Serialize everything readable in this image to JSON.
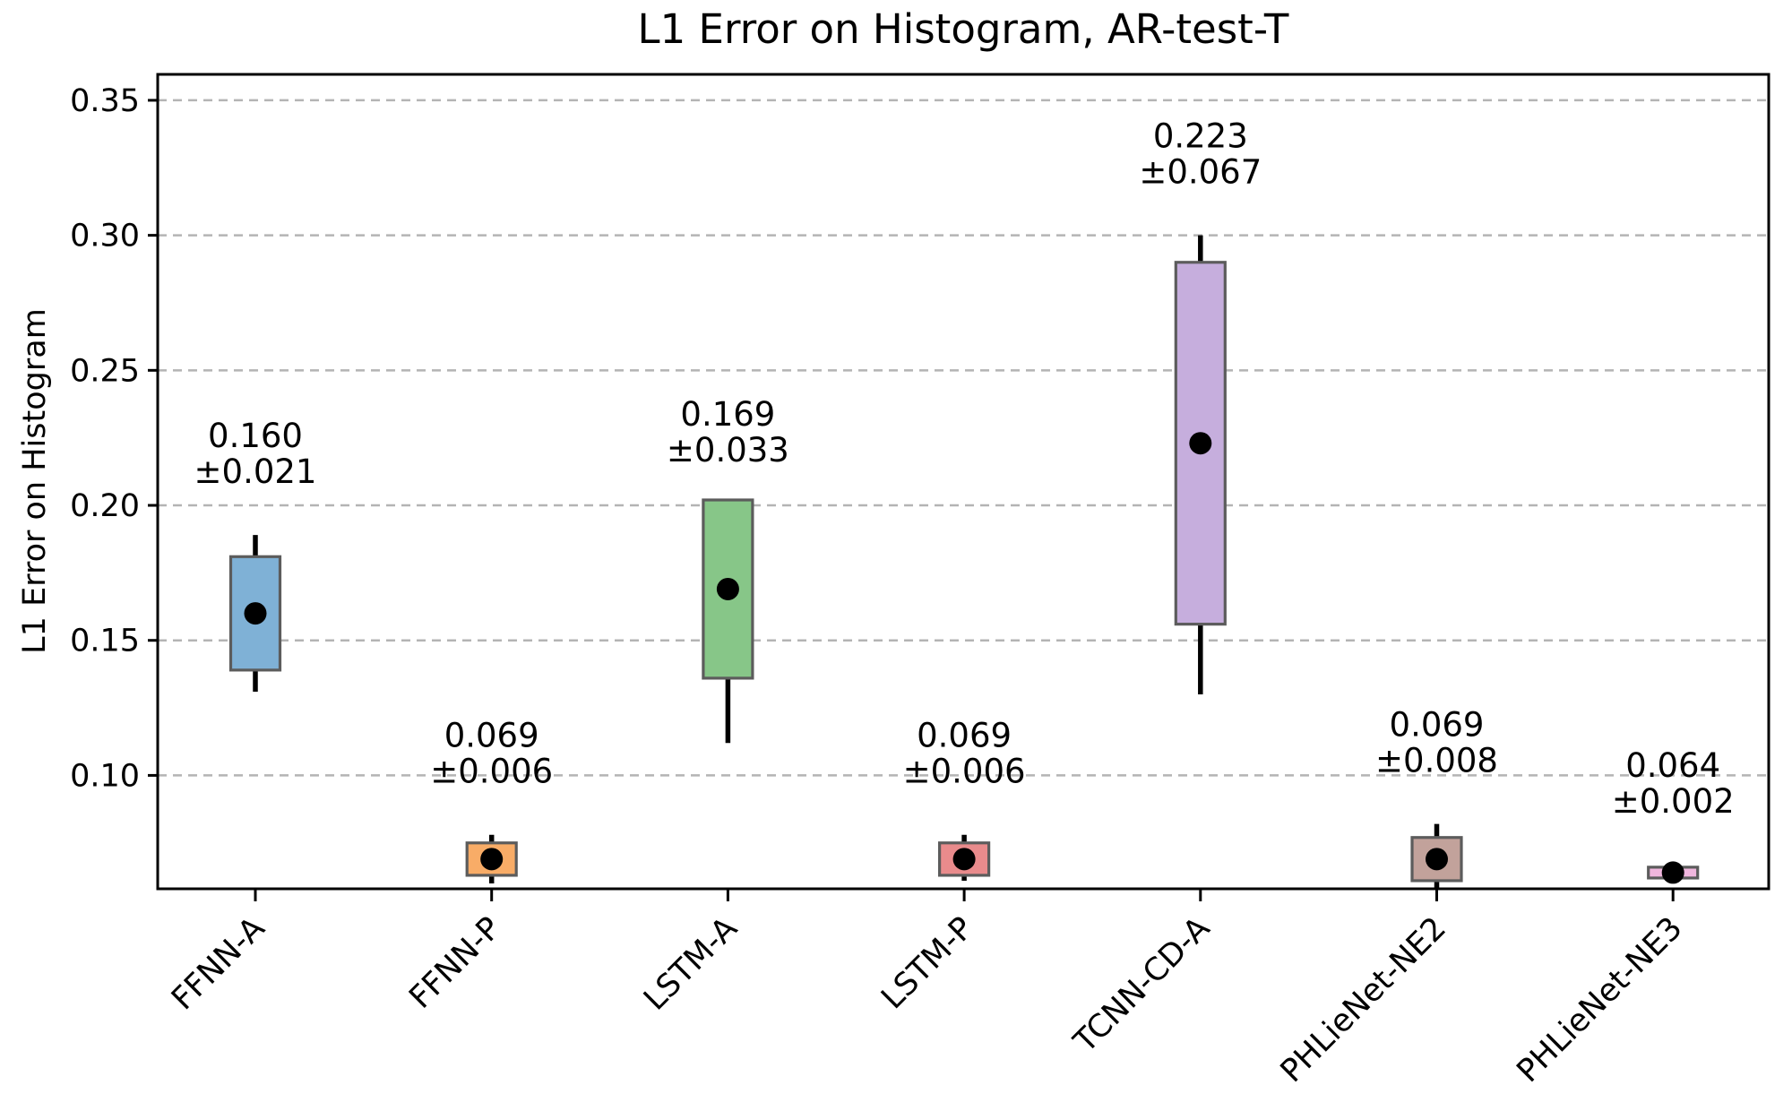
{
  "chart_data": {
    "type": "box",
    "title": "L1 Error on Histogram, AR-test-T",
    "ylabel": "L1 Error on Histogram",
    "xlabel": "",
    "ylim": [
      0.058,
      0.3596
    ],
    "yticks": [
      0.35,
      0.3,
      0.25,
      0.2,
      0.15,
      0.1
    ],
    "ytick_labels": [
      "0.35",
      "0.30",
      "0.25",
      "0.20",
      "0.15",
      "0.10"
    ],
    "grid": "horizontal-dashed",
    "legend": "none",
    "categories": [
      "FFNN-A",
      "FFNN-P",
      "LSTM-A",
      "LSTM-P",
      "TCNN-CD-A",
      "PHLieNet-NE2",
      "PHLieNet-NE3"
    ],
    "series": [
      {
        "label": "FFNN-A",
        "mean": 0.16,
        "std": 0.021,
        "box_low": 0.139,
        "box_high": 0.181,
        "whisker_min": 0.131,
        "whisker_max": 0.189,
        "fill": "#7fb1d6",
        "annotation": {
          "value": "0.160",
          "std": "±0.021"
        }
      },
      {
        "label": "FFNN-P",
        "mean": 0.069,
        "std": 0.006,
        "box_low": 0.063,
        "box_high": 0.075,
        "whisker_min": 0.06,
        "whisker_max": 0.078,
        "fill": "#f8ac67",
        "annotation": {
          "value": "0.069",
          "std": "±0.006"
        }
      },
      {
        "label": "LSTM-A",
        "mean": 0.169,
        "std": 0.033,
        "box_low": 0.136,
        "box_high": 0.202,
        "whisker_min": 0.112,
        "whisker_max": 0.197,
        "fill": "#87c688",
        "annotation": {
          "value": "0.169",
          "std": "±0.033"
        }
      },
      {
        "label": "LSTM-P",
        "mean": 0.069,
        "std": 0.006,
        "box_low": 0.063,
        "box_high": 0.075,
        "whisker_min": 0.061,
        "whisker_max": 0.078,
        "fill": "#e98b8c",
        "annotation": {
          "value": "0.069",
          "std": "±0.006"
        }
      },
      {
        "label": "TCNN-CD-A",
        "mean": 0.223,
        "std": 0.067,
        "box_low": 0.156,
        "box_high": 0.29,
        "whisker_min": 0.13,
        "whisker_max": 0.3,
        "fill": "#c6aedd",
        "annotation": {
          "value": "0.223",
          "std": "±0.067"
        }
      },
      {
        "label": "PHLieNet-NE2",
        "mean": 0.069,
        "std": 0.008,
        "box_low": 0.061,
        "box_high": 0.077,
        "whisker_min": 0.058,
        "whisker_max": 0.082,
        "fill": "#c2a29b",
        "annotation": {
          "value": "0.069",
          "std": "±0.008"
        }
      },
      {
        "label": "PHLieNet-NE3",
        "mean": 0.064,
        "std": 0.002,
        "box_low": 0.062,
        "box_high": 0.066,
        "whisker_min": 0.062,
        "whisker_max": 0.067,
        "fill": "#f0b6dd",
        "annotation": {
          "value": "0.064",
          "std": "±0.002"
        }
      }
    ],
    "colors": {
      "background": "#ffffff",
      "frame": "#000000",
      "grid": "#b4b4b4",
      "box_border": "#5c5c5c",
      "whisker": "#000000",
      "mean_dot": "#000000",
      "text": "#000000"
    }
  }
}
